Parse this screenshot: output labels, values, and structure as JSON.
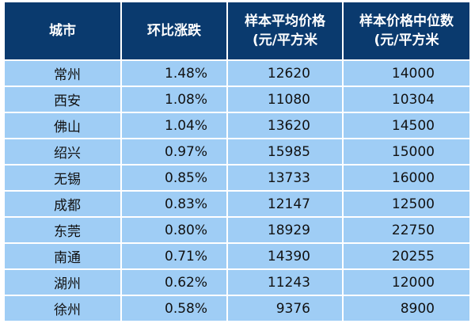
{
  "table": {
    "headers": [
      {
        "line1": "城市",
        "line2": ""
      },
      {
        "line1": "环比涨跌",
        "line2": ""
      },
      {
        "line1": "样本平均价格",
        "line2": "(元/平方米"
      },
      {
        "line1": "样本价格中位数",
        "line2": "(元/平方米"
      }
    ],
    "rows": [
      {
        "city": "常州",
        "change": "1.48%",
        "avg_price": "12620",
        "median_price": "14000"
      },
      {
        "city": "西安",
        "change": "1.08%",
        "avg_price": "11080",
        "median_price": "10304"
      },
      {
        "city": "佛山",
        "change": "1.04%",
        "avg_price": "13620",
        "median_price": "14500"
      },
      {
        "city": "绍兴",
        "change": "0.97%",
        "avg_price": "15985",
        "median_price": "15000"
      },
      {
        "city": "无锡",
        "change": "0.85%",
        "avg_price": "13733",
        "median_price": "16000"
      },
      {
        "city": "成都",
        "change": "0.83%",
        "avg_price": "12147",
        "median_price": "12500"
      },
      {
        "city": "东莞",
        "change": "0.80%",
        "avg_price": "18929",
        "median_price": "22750"
      },
      {
        "city": "南通",
        "change": "0.71%",
        "avg_price": "14390",
        "median_price": "20255"
      },
      {
        "city": "湖州",
        "change": "0.62%",
        "avg_price": "11243",
        "median_price": "12000"
      },
      {
        "city": "徐州",
        "change": "0.58%",
        "avg_price": "9376",
        "median_price": "8900"
      }
    ]
  },
  "colors": {
    "header_background": "#0a3a6e",
    "body_background": "#9fcdf5",
    "grid_lines": "#ffffff"
  }
}
